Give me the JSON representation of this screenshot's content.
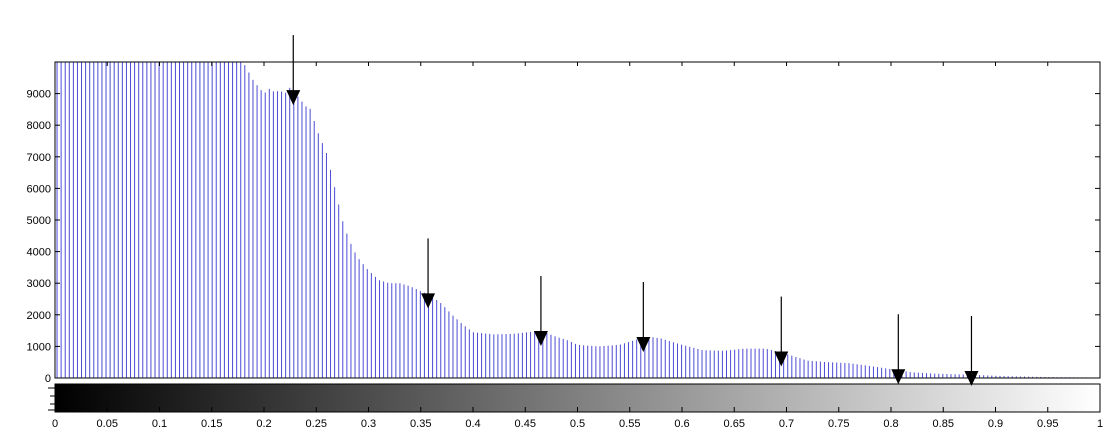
{
  "chart_data": {
    "type": "bar",
    "title": "",
    "xlabel": "",
    "ylabel": "",
    "xlim": [
      0,
      1
    ],
    "ylim": [
      0,
      10000
    ],
    "bar_color": "#4b4bd6",
    "ytick_labels": [
      "0",
      "1000",
      "2000",
      "3000",
      "4000",
      "5000",
      "6000",
      "7000",
      "8000",
      "9000"
    ],
    "xtick_labels": [
      "0",
      "0.05",
      "0.1",
      "0.15",
      "0.2",
      "0.25",
      "0.3",
      "0.35",
      "0.4",
      "0.45",
      "0.5",
      "0.55",
      "0.6",
      "0.65",
      "0.7",
      "0.75",
      "0.8",
      "0.85",
      "0.9",
      "0.95",
      "1"
    ],
    "colorbar": {
      "type": "grayscale",
      "from": "#000000",
      "to": "#ffffff"
    },
    "annotation_arrows_x": [
      0.228,
      0.357,
      0.465,
      0.563,
      0.695,
      0.807,
      0.877
    ],
    "profile_x": [
      0.0,
      0.18,
      0.19,
      0.2,
      0.205,
      0.21,
      0.215,
      0.22,
      0.225,
      0.23,
      0.235,
      0.24,
      0.245,
      0.25,
      0.255,
      0.26,
      0.265,
      0.27,
      0.275,
      0.28,
      0.285,
      0.29,
      0.295,
      0.3,
      0.31,
      0.32,
      0.33,
      0.34,
      0.35,
      0.36,
      0.37,
      0.38,
      0.39,
      0.4,
      0.42,
      0.44,
      0.46,
      0.47,
      0.48,
      0.49,
      0.5,
      0.52,
      0.54,
      0.56,
      0.57,
      0.58,
      0.6,
      0.62,
      0.64,
      0.66,
      0.68,
      0.69,
      0.7,
      0.72,
      0.74,
      0.76,
      0.78,
      0.8,
      0.82,
      0.84,
      0.86,
      0.88,
      0.9,
      0.92,
      0.95,
      0.98,
      1.0
    ],
    "profile_y": [
      10000,
      10000,
      9400,
      9000,
      9150,
      9050,
      9100,
      9000,
      9200,
      9000,
      8800,
      8600,
      8500,
      7900,
      7500,
      7100,
      6400,
      5700,
      5000,
      4500,
      4100,
      3800,
      3600,
      3400,
      3100,
      3000,
      3000,
      2900,
      2750,
      2600,
      2350,
      2000,
      1700,
      1450,
      1380,
      1400,
      1480,
      1430,
      1300,
      1200,
      1050,
      1000,
      1050,
      1250,
      1300,
      1250,
      1050,
      880,
      860,
      930,
      930,
      850,
      760,
      550,
      500,
      470,
      380,
      280,
      180,
      140,
      120,
      100,
      70,
      50,
      30,
      20,
      15
    ]
  }
}
